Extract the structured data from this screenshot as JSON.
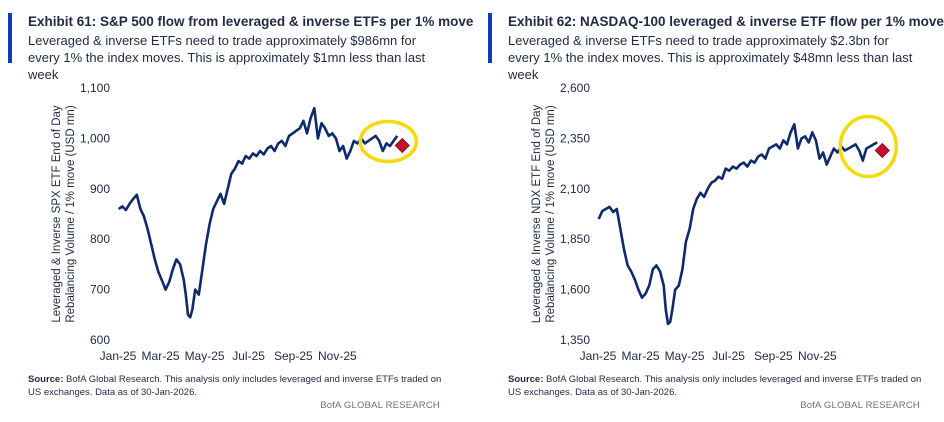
{
  "brand": {
    "accent": "#0a3fb5",
    "line_color": "#0f2a6b",
    "highlight": "#f5d90a",
    "marker": "#c8102e"
  },
  "exhibits": [
    {
      "title": "Exhibit 61: S&P 500 flow from leveraged & inverse ETFs per 1% move",
      "subtitle": "Leveraged & inverse ETFs need to trade approximately $986mn for every 1% the index moves. This is approximately $1mn less than last week",
      "source_label": "Source:",
      "source_text": "BofA Global Research.  This analysis only includes leveraged and inverse ETFs traded on US exchanges.  Data as of 30-Jan-2026.",
      "brand_text": "BofA GLOBAL RESEARCH"
    },
    {
      "title": "Exhibit 62: NASDAQ-100 leveraged & inverse ETF flow per 1% move",
      "subtitle": "Leveraged & inverse ETFs need to trade approximately $2.3bn for every 1% the index moves. This is approximately $48mn less than last week",
      "source_label": "Source:",
      "source_text": "BofA Global Research.  This analysis only includes leveraged and inverse ETFs traded on US exchanges.  Data as of 30-Jan-2026.",
      "brand_text": "BofA GLOBAL RESEARCH"
    }
  ],
  "chart_data": [
    {
      "type": "line",
      "ylabel_line1": "Leveraged & Inverse SPX ETF End of Day",
      "ylabel_line2": "Rebalancing Volume / 1% move (USD mn)",
      "ylim": [
        600,
        1100
      ],
      "yticks": [
        600,
        700,
        800,
        900,
        1000,
        1100
      ],
      "ytick_labels": [
        "600",
        "700",
        "800",
        "900",
        "1,000",
        "1,100"
      ],
      "xlim": [
        "2025-01-01",
        "2026-01-31"
      ],
      "xticks": [
        "2025-01-01",
        "2025-03-01",
        "2025-05-01",
        "2025-07-01",
        "2025-09-01",
        "2025-11-01"
      ],
      "xtick_labels": [
        "Jan-25",
        "Mar-25",
        "May-25",
        "Jul-25",
        "Sep-25",
        "Nov-25"
      ],
      "grid": false,
      "series": [
        {
          "x": [
            "2025-01-02",
            "2025-01-07",
            "2025-01-12",
            "2025-01-17",
            "2025-01-22",
            "2025-01-27",
            "2025-02-01",
            "2025-02-06",
            "2025-02-11",
            "2025-02-16",
            "2025-02-21",
            "2025-02-26",
            "2025-03-03",
            "2025-03-08",
            "2025-03-13",
            "2025-03-18",
            "2025-03-23",
            "2025-03-28",
            "2025-04-02",
            "2025-04-05",
            "2025-04-08",
            "2025-04-11",
            "2025-04-14",
            "2025-04-18",
            "2025-04-23",
            "2025-04-28",
            "2025-05-03",
            "2025-05-08",
            "2025-05-13",
            "2025-05-18",
            "2025-05-23",
            "2025-05-28",
            "2025-06-02",
            "2025-06-07",
            "2025-06-12",
            "2025-06-17",
            "2025-06-22",
            "2025-06-27",
            "2025-07-02",
            "2025-07-07",
            "2025-07-12",
            "2025-07-17",
            "2025-07-22",
            "2025-07-27",
            "2025-08-01",
            "2025-08-06",
            "2025-08-11",
            "2025-08-16",
            "2025-08-21",
            "2025-08-26",
            "2025-08-31",
            "2025-09-05",
            "2025-09-10",
            "2025-09-15",
            "2025-09-20",
            "2025-09-25",
            "2025-09-30",
            "2025-10-05",
            "2025-10-10",
            "2025-10-15",
            "2025-10-20",
            "2025-10-25",
            "2025-10-30",
            "2025-11-04",
            "2025-11-09",
            "2025-11-14",
            "2025-11-19",
            "2025-11-24",
            "2025-11-29",
            "2025-12-04",
            "2025-12-09",
            "2025-12-14",
            "2025-12-19",
            "2025-12-24",
            "2025-12-29",
            "2026-01-03",
            "2026-01-08",
            "2026-01-13",
            "2026-01-18",
            "2026-01-23"
          ],
          "values": [
            860,
            865,
            858,
            870,
            880,
            888,
            860,
            845,
            820,
            790,
            760,
            735,
            718,
            700,
            715,
            740,
            760,
            750,
            720,
            690,
            650,
            645,
            660,
            700,
            690,
            740,
            790,
            830,
            860,
            875,
            890,
            870,
            900,
            930,
            940,
            955,
            950,
            965,
            960,
            970,
            965,
            975,
            968,
            980,
            985,
            975,
            990,
            995,
            985,
            1005,
            1010,
            1015,
            1020,
            1035,
            1010,
            1040,
            1060,
            1000,
            1030,
            1020,
            1005,
            1010,
            1000,
            975,
            985,
            960,
            975,
            995,
            990,
            1000,
            990,
            995,
            1000,
            1005,
            995,
            975,
            990,
            985,
            995,
            1005
          ]
        }
      ],
      "marker": {
        "x": "2026-01-30",
        "y": 986
      }
    },
    {
      "type": "line",
      "ylabel_line1": "Leveraged & Inverse NDX ETF End of Day",
      "ylabel_line2": "Rebalancing Volume / 1% move (USD mn)",
      "ylim": [
        1350,
        2600
      ],
      "yticks": [
        1350,
        1600,
        1850,
        2100,
        2350,
        2600
      ],
      "ytick_labels": [
        "1,350",
        "1,600",
        "1,850",
        "2,100",
        "2,350",
        "2,600"
      ],
      "xlim": [
        "2025-01-01",
        "2026-01-31"
      ],
      "xticks": [
        "2025-01-01",
        "2025-03-01",
        "2025-05-01",
        "2025-07-01",
        "2025-09-01",
        "2025-11-01"
      ],
      "xtick_labels": [
        "Jan-25",
        "Mar-25",
        "May-25",
        "Jul-25",
        "Sep-25",
        "Nov-25"
      ],
      "grid": false,
      "series": [
        {
          "x": [
            "2025-01-02",
            "2025-01-07",
            "2025-01-12",
            "2025-01-17",
            "2025-01-22",
            "2025-01-27",
            "2025-02-01",
            "2025-02-06",
            "2025-02-11",
            "2025-02-16",
            "2025-02-21",
            "2025-02-26",
            "2025-03-03",
            "2025-03-08",
            "2025-03-13",
            "2025-03-18",
            "2025-03-23",
            "2025-03-28",
            "2025-04-02",
            "2025-04-05",
            "2025-04-08",
            "2025-04-11",
            "2025-04-14",
            "2025-04-18",
            "2025-04-23",
            "2025-04-28",
            "2025-05-03",
            "2025-05-08",
            "2025-05-13",
            "2025-05-18",
            "2025-05-23",
            "2025-05-28",
            "2025-06-02",
            "2025-06-07",
            "2025-06-12",
            "2025-06-17",
            "2025-06-22",
            "2025-06-27",
            "2025-07-02",
            "2025-07-07",
            "2025-07-12",
            "2025-07-17",
            "2025-07-22",
            "2025-07-27",
            "2025-08-01",
            "2025-08-06",
            "2025-08-11",
            "2025-08-16",
            "2025-08-21",
            "2025-08-26",
            "2025-08-31",
            "2025-09-05",
            "2025-09-10",
            "2025-09-15",
            "2025-09-20",
            "2025-09-25",
            "2025-09-30",
            "2025-10-05",
            "2025-10-10",
            "2025-10-15",
            "2025-10-20",
            "2025-10-25",
            "2025-10-30",
            "2025-11-04",
            "2025-11-09",
            "2025-11-14",
            "2025-11-19",
            "2025-11-24",
            "2025-11-29",
            "2025-12-04",
            "2025-12-09",
            "2025-12-14",
            "2025-12-19",
            "2025-12-24",
            "2025-12-29",
            "2026-01-03",
            "2026-01-08",
            "2026-01-13",
            "2026-01-18",
            "2026-01-23"
          ],
          "values": [
            1950,
            1990,
            2000,
            2010,
            1985,
            2000,
            1900,
            1800,
            1720,
            1690,
            1650,
            1600,
            1560,
            1580,
            1620,
            1700,
            1720,
            1690,
            1620,
            1500,
            1430,
            1440,
            1500,
            1600,
            1620,
            1700,
            1840,
            1900,
            2000,
            2050,
            2080,
            2060,
            2100,
            2130,
            2140,
            2160,
            2150,
            2200,
            2190,
            2210,
            2200,
            2220,
            2230,
            2210,
            2240,
            2230,
            2260,
            2270,
            2250,
            2300,
            2310,
            2320,
            2300,
            2340,
            2320,
            2380,
            2420,
            2300,
            2350,
            2360,
            2330,
            2380,
            2340,
            2250,
            2280,
            2220,
            2260,
            2300,
            2280,
            2310,
            2290,
            2300,
            2310,
            2320,
            2290,
            2240,
            2300,
            2310,
            2320,
            2330
          ]
        }
      ],
      "marker": {
        "x": "2026-01-30",
        "y": 2290
      }
    }
  ]
}
